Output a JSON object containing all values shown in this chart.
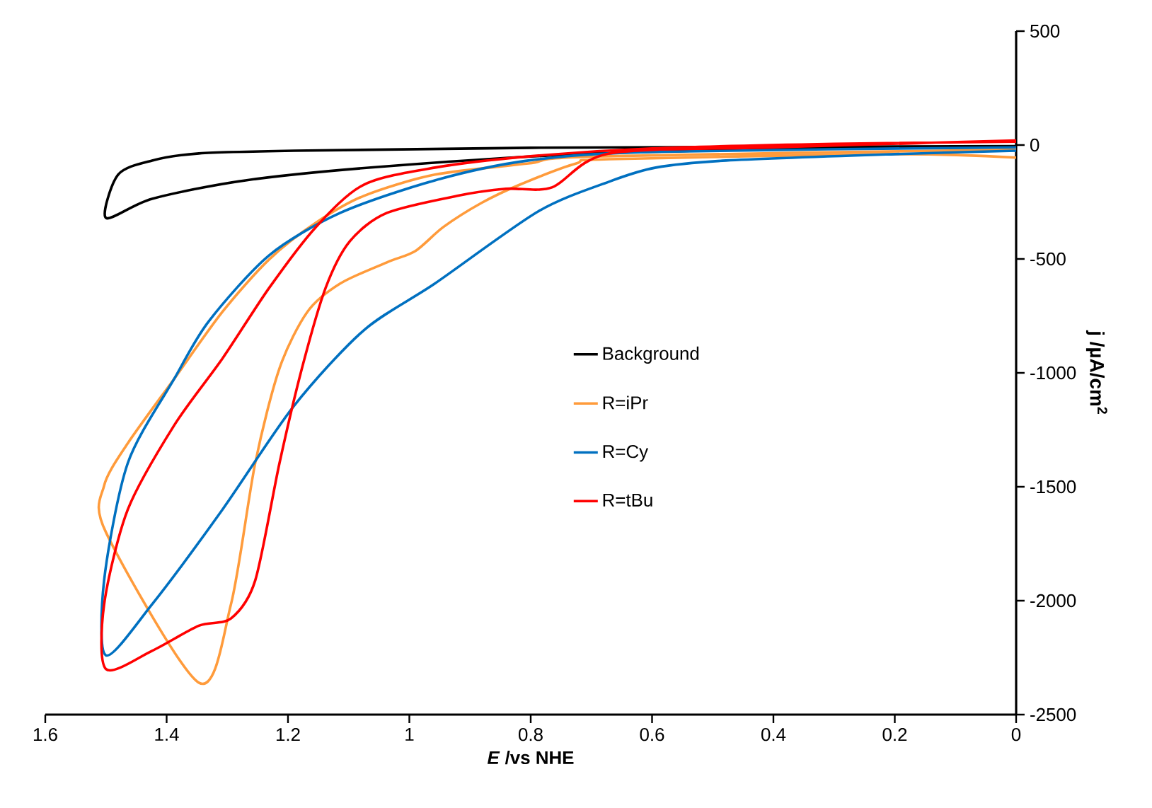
{
  "chart_data": {
    "type": "line",
    "xlabel": "*E* /vs NHE",
    "ylabel": "j /µA/cm$^{2}$",
    "xlim": [
      1.6,
      0
    ],
    "xticks": [
      1.6,
      1.4,
      1.2,
      1,
      0.8,
      0.6,
      0.4,
      0.2,
      0
    ],
    "ylim": [
      -2500,
      500
    ],
    "yticks": [
      -2500,
      -2000,
      -1500,
      -1000,
      -500,
      0,
      500
    ],
    "grid": false,
    "legend": "center",
    "marker": "none",
    "line_style": "solid",
    "series": [
      {
        "name": "Background",
        "color": "#000000",
        "x": [
          0,
          0.3,
          0.695,
          1.037,
          1.27,
          1.424,
          1.5,
          1.48,
          1.424,
          1.347,
          1.19,
          0.8,
          0
        ],
        "values": [
          -10,
          -15,
          -37,
          -93,
          -155,
          -236,
          -320,
          -130,
          -68,
          -37,
          -25,
          -12,
          -5
        ]
      },
      {
        "name": "R=iPr",
        "color": "#ff9b3b",
        "x": [
          0,
          0.2,
          0.671,
          0.725,
          0.818,
          0.881,
          0.944,
          0.99,
          1.037,
          1.114,
          1.168,
          1.214,
          1.254,
          1.294,
          1.347,
          1.5,
          1.503,
          1.464,
          1.387,
          1.308,
          1.231,
          1.154,
          1.075,
          0.958,
          0.804,
          0.695,
          0
        ],
        "values": [
          -55,
          -40,
          -62,
          -81,
          -174,
          -254,
          -360,
          -465,
          -515,
          -608,
          -732,
          -980,
          -1396,
          -2016,
          -2360,
          -1700,
          -1495,
          -1309,
          -1024,
          -732,
          -502,
          -341,
          -223,
          -130,
          -81,
          -50,
          -20
        ]
      },
      {
        "name": "R=Cy",
        "color": "#0070c0",
        "x": [
          0,
          0.2,
          0.478,
          0.594,
          0.671,
          0.788,
          0.958,
          1.075,
          1.191,
          1.308,
          1.424,
          1.5,
          1.503,
          1.464,
          1.387,
          1.331,
          1.231,
          1.114,
          0.958,
          0.804,
          0.6,
          0
        ],
        "values": [
          -25,
          -40,
          -68,
          -99,
          -161,
          -292,
          -608,
          -813,
          -1148,
          -1600,
          -2016,
          -2240,
          -1910,
          -1396,
          -1024,
          -775,
          -484,
          -298,
          -155,
          -68,
          -30,
          -10
        ]
      },
      {
        "name": "R=tBu",
        "color": "#ff0000",
        "x": [
          0,
          0.4,
          0.671,
          0.765,
          0.841,
          0.921,
          1.037,
          1.098,
          1.138,
          1.177,
          1.214,
          1.254,
          1.294,
          1.347,
          1.424,
          1.5,
          1.503,
          1.464,
          1.387,
          1.308,
          1.231,
          1.154,
          1.075,
          0.958,
          0.804,
          0.6,
          0.3,
          0
        ],
        "values": [
          20,
          -10,
          -37,
          -186,
          -192,
          -223,
          -298,
          -422,
          -627,
          -980,
          -1396,
          -1911,
          -2078,
          -2110,
          -2220,
          -2300,
          -2016,
          -1600,
          -1228,
          -937,
          -627,
          -360,
          -174,
          -99,
          -50,
          -15,
          5,
          15
        ]
      }
    ]
  }
}
